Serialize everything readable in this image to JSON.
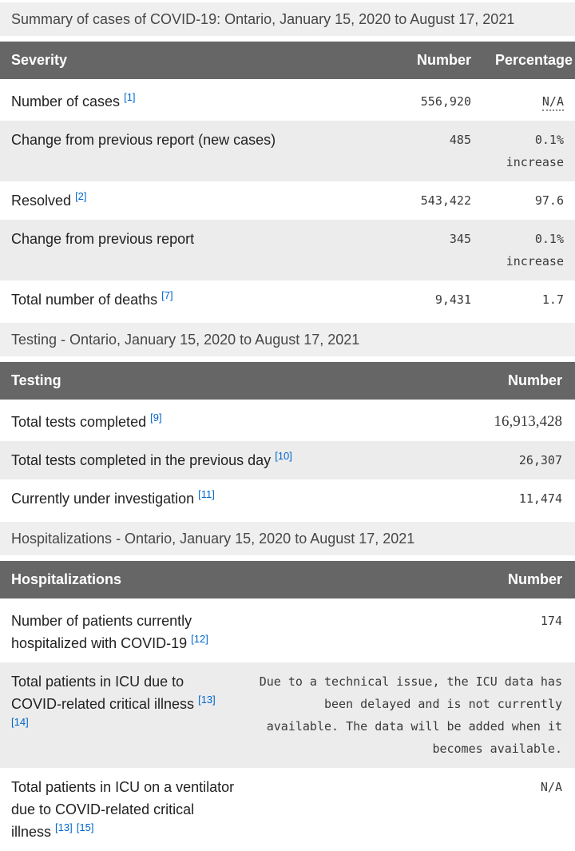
{
  "sections": {
    "cases": {
      "title": "Summary of cases of COVID-19: Ontario, January 15, 2020 to August 17, 2021",
      "headers": [
        "Severity",
        "Number",
        "Percentage"
      ],
      "rows": [
        {
          "label": "Number of cases",
          "refs": [
            "[1]"
          ],
          "cells": [
            {
              "text": "556,920"
            },
            {
              "text": "N/A",
              "abbr": true
            }
          ]
        },
        {
          "label": "Change from previous report (new cases)",
          "refs": [],
          "cells": [
            {
              "text": "485"
            },
            {
              "text": "0.1% increase"
            }
          ]
        },
        {
          "label": "Resolved",
          "refs": [
            "[2]"
          ],
          "cells": [
            {
              "text": "543,422"
            },
            {
              "text": "97.6"
            }
          ]
        },
        {
          "label": "Change from previous report",
          "refs": [],
          "cells": [
            {
              "text": "345"
            },
            {
              "text": "0.1% increase"
            }
          ]
        },
        {
          "label": "Total number of deaths",
          "refs": [
            "[7]"
          ],
          "cells": [
            {
              "text": "9,431"
            },
            {
              "text": "1.7"
            }
          ]
        }
      ]
    },
    "testing": {
      "title": "Testing - Ontario, January 15, 2020 to August 17, 2021",
      "headers": [
        "Testing",
        "Number"
      ],
      "rows": [
        {
          "label": "Total tests completed",
          "refs": [
            "[9]"
          ],
          "cells": [
            {
              "text": "16,913,428",
              "serif": true
            }
          ]
        },
        {
          "label": "Total tests completed in the previous day",
          "refs": [
            "[10]"
          ],
          "cells": [
            {
              "text": "26,307"
            }
          ]
        },
        {
          "label": "Currently under investigation",
          "refs": [
            "[11]"
          ],
          "cells": [
            {
              "text": "11,474"
            }
          ]
        }
      ]
    },
    "hospitalizations": {
      "title": "Hospitalizations - Ontario, January 15, 2020 to August 17, 2021",
      "headers": [
        "Hospitalizations",
        "Number"
      ],
      "rows": [
        {
          "label": "Number of patients currently hospitalized with COVID-19",
          "refs": [
            "[12]"
          ],
          "cells": [
            {
              "text": "174"
            }
          ]
        },
        {
          "label": "Total patients in ICU due to COVID-related critical illness",
          "refs": [
            "[13]",
            "[14]"
          ],
          "cells": [
            {
              "text": "Due to a technical issue, the ICU data has been delayed and is not currently available. The data will be added when it becomes available."
            }
          ]
        },
        {
          "label": "Total patients in ICU on a ventilator due to COVID-related critical illness",
          "refs": [
            "[13]",
            "[15]"
          ],
          "cells": [
            {
              "text": "N/A"
            }
          ]
        }
      ]
    }
  },
  "colors": {
    "header_bg": "#666666",
    "header_text": "#ffffff",
    "band_bg": "#efefef",
    "row_alt_bg": "#ececec",
    "label_text": "#222222",
    "value_text": "#3a3a3a",
    "footnote_link": "#0066cc"
  }
}
